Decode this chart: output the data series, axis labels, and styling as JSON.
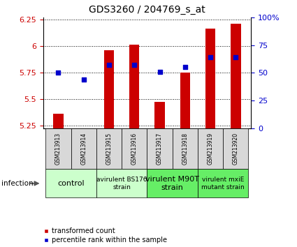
{
  "title": "GDS3260 / 204769_s_at",
  "samples": [
    "GSM213913",
    "GSM213914",
    "GSM213915",
    "GSM213916",
    "GSM213917",
    "GSM213918",
    "GSM213919",
    "GSM213920"
  ],
  "bar_values": [
    5.36,
    5.22,
    5.96,
    6.01,
    5.47,
    5.75,
    6.16,
    6.21
  ],
  "bar_bottom": 5.22,
  "percentile_values": [
    50,
    44,
    57,
    57,
    51,
    55,
    64,
    64
  ],
  "ylim_lo": 5.22,
  "ylim_hi": 6.27,
  "yticks_left": [
    5.25,
    5.5,
    5.75,
    6.0,
    6.25
  ],
  "ytick_left_labels": [
    "5.25",
    "5.5",
    "5.75",
    "6",
    "6.25"
  ],
  "yticks_right": [
    0,
    25,
    50,
    75,
    100
  ],
  "ytick_right_labels": [
    "0",
    "25",
    "50",
    "75",
    "100%"
  ],
  "bar_color": "#cc0000",
  "dot_color": "#0000cc",
  "groups": [
    {
      "label": "control",
      "start": 0,
      "end": 2,
      "color": "#ccffcc",
      "fontsize": 8,
      "bold": false
    },
    {
      "label": "avirulent BS176\nstrain",
      "start": 2,
      "end": 4,
      "color": "#ccffcc",
      "fontsize": 6.5,
      "bold": false
    },
    {
      "label": "virulent M90T\nstrain",
      "start": 4,
      "end": 6,
      "color": "#66ee66",
      "fontsize": 8,
      "bold": false
    },
    {
      "label": "virulent mxiE\nmutant strain",
      "start": 6,
      "end": 8,
      "color": "#66ee66",
      "fontsize": 6.5,
      "bold": false
    }
  ],
  "legend_red_label": "transformed count",
  "legend_blue_label": "percentile rank within the sample",
  "infection_label": "infection",
  "left_axis_color": "#cc0000",
  "right_axis_color": "#0000cc",
  "sample_cell_color": "#d8d8d8",
  "bar_width": 0.4
}
